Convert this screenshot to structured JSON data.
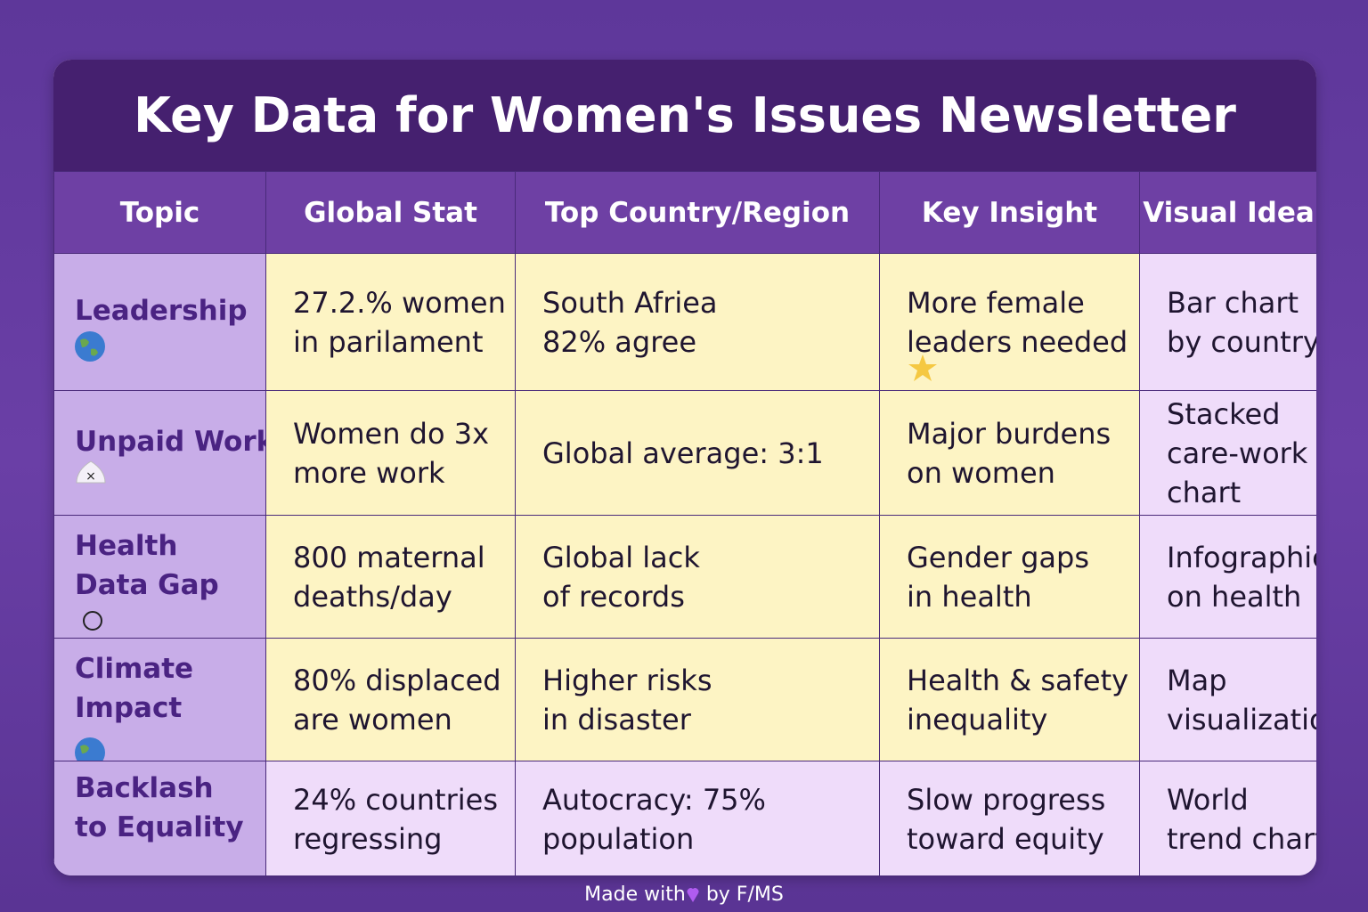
{
  "header": {
    "title": "Key Data for Women's Issues Newsletter"
  },
  "table": {
    "columns": [
      "Topic",
      "Global Stat",
      "Top Country/Region",
      "Key Insight",
      "Visual Idea"
    ],
    "rows": [
      [
        [
          "Leadership"
        ],
        [
          "27.2.% women",
          "in parilament"
        ],
        [
          "South Afriea",
          "82% agree"
        ],
        [
          "More female",
          "leaders needed"
        ],
        [
          "Bar chart",
          "by country"
        ]
      ],
      [
        [
          "Unpaid Work"
        ],
        [
          "Women do 3x",
          "more work"
        ],
        [
          "Global average: 3:1"
        ],
        [
          "Major burdens",
          "on women"
        ],
        [
          "Stacked",
          "care-work",
          "chart"
        ]
      ],
      [
        [
          "Health",
          "Data Gap"
        ],
        [
          "800 maternal",
          "deaths/day"
        ],
        [
          "Global lack",
          "of records"
        ],
        [
          "Gender gaps",
          "in health"
        ],
        [
          "Infographic",
          "on health"
        ]
      ],
      [
        [
          "Climate",
          "Impact"
        ],
        [
          "80% displaced",
          "are women"
        ],
        [
          "Higher risks",
          "in disaster"
        ],
        [
          "Health & safety",
          "inequality"
        ],
        [
          "Map",
          "visualization"
        ]
      ],
      [
        [
          "Backlash",
          "to Equality"
        ],
        [
          "24% countries",
          "regressing"
        ],
        [
          "Autocracy: 75%",
          "population"
        ],
        [
          "Slow progress",
          "toward equity"
        ],
        [
          "World",
          "trend chart"
        ]
      ]
    ]
  },
  "footer": {
    "before": "Made with",
    "after": "by F/MS"
  }
}
